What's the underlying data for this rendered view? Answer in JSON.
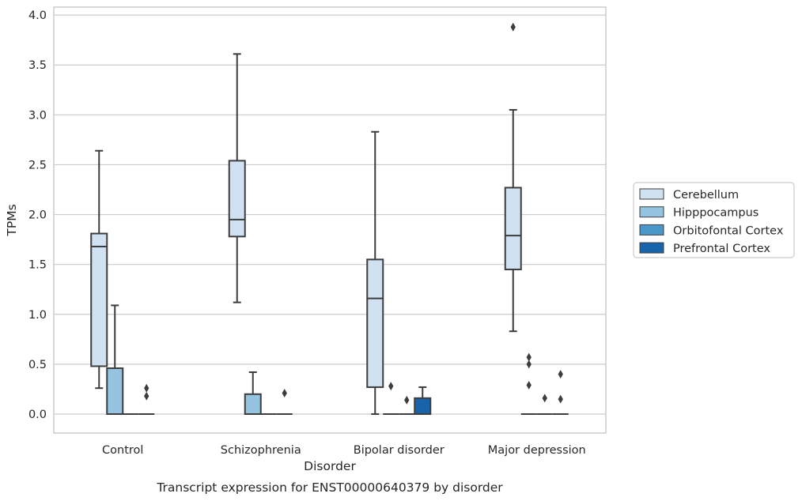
{
  "chart_data": {
    "type": "box",
    "title": "",
    "xlabel": "Disorder",
    "ylabel": "TPMs",
    "caption": "Transcript expression for ENST00000640379 by disorder",
    "categories": [
      "Control",
      "Schizophrenia",
      "Bipolar disorder",
      "Major depression"
    ],
    "ylim": [
      -0.19,
      4.08
    ],
    "yticks": [
      0.0,
      0.5,
      1.0,
      1.5,
      2.0,
      2.5,
      3.0,
      3.5,
      4.0
    ],
    "ytick_labels": [
      "0.0",
      "0.5",
      "1.0",
      "1.5",
      "2.0",
      "2.5",
      "3.0",
      "3.5",
      "4.0"
    ],
    "grid": "horizontal",
    "legend_position": "right",
    "series": [
      {
        "name": "Cerebellum",
        "color": "#d0e1f2",
        "boxes": [
          {
            "whislo": 0.26,
            "q1": 0.48,
            "med": 1.68,
            "q3": 1.81,
            "whishi": 2.64,
            "fliers": []
          },
          {
            "whislo": 1.12,
            "q1": 1.78,
            "med": 1.95,
            "q3": 2.54,
            "whishi": 3.61,
            "fliers": []
          },
          {
            "whislo": 0.0,
            "q1": 0.27,
            "med": 1.16,
            "q3": 1.55,
            "whishi": 2.83,
            "fliers": []
          },
          {
            "whislo": 0.83,
            "q1": 1.45,
            "med": 1.79,
            "q3": 2.27,
            "whishi": 3.05,
            "fliers": [
              3.88
            ]
          }
        ]
      },
      {
        "name": "Hipppocampus",
        "color": "#94c4df",
        "boxes": [
          {
            "whislo": 0.0,
            "q1": 0.0,
            "med": 0.0,
            "q3": 0.46,
            "whishi": 1.09,
            "fliers": []
          },
          {
            "whislo": 0.0,
            "q1": 0.0,
            "med": 0.0,
            "q3": 0.2,
            "whishi": 0.42,
            "fliers": []
          },
          {
            "whislo": 0.0,
            "q1": 0.0,
            "med": 0.0,
            "q3": 0.0,
            "whishi": 0.0,
            "fliers": [
              0.28
            ]
          },
          {
            "whislo": 0.0,
            "q1": 0.0,
            "med": 0.0,
            "q3": 0.0,
            "whishi": 0.0,
            "fliers": [
              0.57,
              0.5,
              0.29
            ]
          }
        ]
      },
      {
        "name": "Orbitofontal Cortex",
        "color": "#4a98c9",
        "boxes": [
          {
            "whislo": 0.0,
            "q1": 0.0,
            "med": 0.0,
            "q3": 0.0,
            "whishi": 0.0,
            "fliers": []
          },
          {
            "whislo": 0.0,
            "q1": 0.0,
            "med": 0.0,
            "q3": 0.0,
            "whishi": 0.0,
            "fliers": []
          },
          {
            "whislo": 0.0,
            "q1": 0.0,
            "med": 0.0,
            "q3": 0.0,
            "whishi": 0.0,
            "fliers": [
              0.14
            ]
          },
          {
            "whislo": 0.0,
            "q1": 0.0,
            "med": 0.0,
            "q3": 0.0,
            "whishi": 0.0,
            "fliers": [
              0.16
            ]
          }
        ]
      },
      {
        "name": "Prefrontal Cortex",
        "color": "#1764ab",
        "boxes": [
          {
            "whislo": 0.0,
            "q1": 0.0,
            "med": 0.0,
            "q3": 0.0,
            "whishi": 0.0,
            "fliers": [
              0.26,
              0.18
            ]
          },
          {
            "whislo": 0.0,
            "q1": 0.0,
            "med": 0.0,
            "q3": 0.0,
            "whishi": 0.0,
            "fliers": [
              0.21
            ]
          },
          {
            "whislo": 0.0,
            "q1": 0.0,
            "med": 0.0,
            "q3": 0.16,
            "whishi": 0.27,
            "fliers": []
          },
          {
            "whislo": 0.0,
            "q1": 0.0,
            "med": 0.0,
            "q3": 0.0,
            "whishi": 0.0,
            "fliers": [
              0.4,
              0.15
            ]
          }
        ]
      }
    ]
  },
  "colors": {
    "box_edge": "#3d3d3d",
    "grid": "#cccccc",
    "spine": "#cccccc",
    "background": "#ffffff"
  }
}
